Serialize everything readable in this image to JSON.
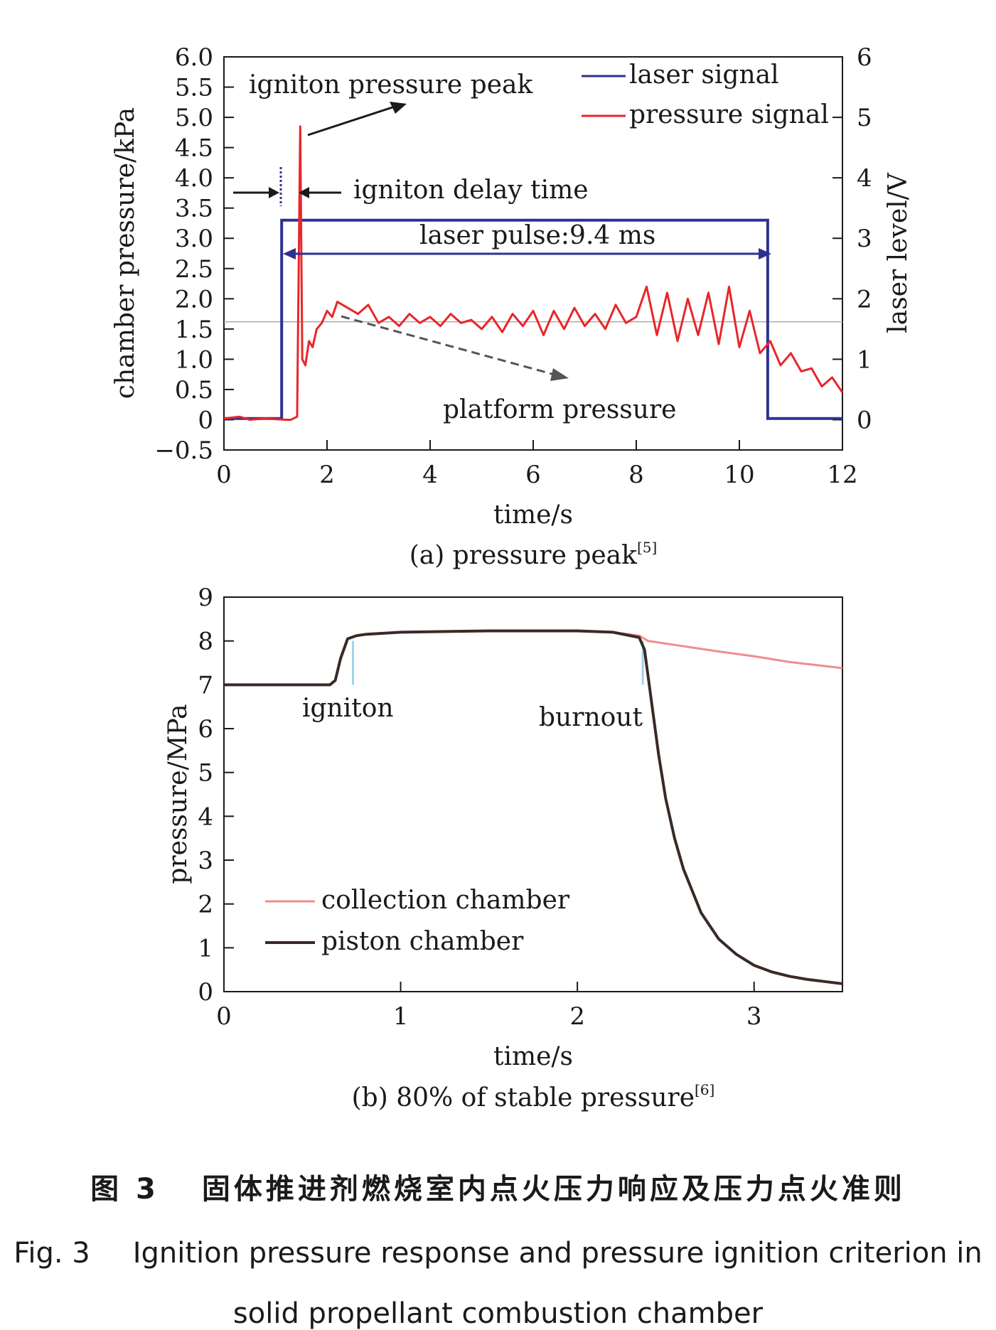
{
  "chart_data": [
    {
      "type": "line",
      "xlabel": "time/s",
      "ylabel": "chamber pressure/kPa",
      "ylabel_right": "laser level/V",
      "xlim": [
        0,
        12
      ],
      "ylim": [
        -0.5,
        6.0
      ],
      "ylim_right": [
        -0.5,
        6.0
      ],
      "x_ticks": [
        "0",
        "2",
        "4",
        "6",
        "8",
        "10",
        "12"
      ],
      "y_ticks": [
        "6.0",
        "5.5",
        "5.0",
        "4.5",
        "4.0",
        "3.5",
        "3.0",
        "2.5",
        "2.0",
        "1.5",
        "1.0",
        "0.5",
        "0",
        "−0.5"
      ],
      "y_ticks_right": [
        "6",
        "5",
        "4",
        "3",
        "2",
        "1",
        "0"
      ],
      "legend_position": "top-right",
      "grid": false,
      "series": [
        {
          "name": "laser signal",
          "color": "#2e3192",
          "x": [
            0,
            1.12,
            1.12,
            10.55,
            10.55,
            12
          ],
          "y": [
            0.02,
            0.02,
            3.3,
            3.3,
            0.02,
            0.02
          ]
        },
        {
          "name": "pressure signal",
          "color": "#e8262a",
          "x": [
            0,
            0.3,
            0.5,
            0.8,
            1.2,
            1.3,
            1.42,
            1.48,
            1.52,
            1.58,
            1.65,
            1.72,
            1.8,
            1.9,
            2.0,
            2.1,
            2.2,
            2.4,
            2.6,
            2.8,
            3.0,
            3.2,
            3.4,
            3.6,
            3.8,
            4.0,
            4.2,
            4.4,
            4.6,
            4.8,
            5.0,
            5.2,
            5.4,
            5.6,
            5.8,
            6.0,
            6.2,
            6.4,
            6.6,
            6.8,
            7.0,
            7.2,
            7.4,
            7.6,
            7.8,
            8.0,
            8.2,
            8.4,
            8.6,
            8.8,
            9.0,
            9.2,
            9.4,
            9.6,
            9.8,
            10.0,
            10.2,
            10.4,
            10.6,
            10.8,
            11.0,
            11.2,
            11.4,
            11.6,
            11.8,
            12.0
          ],
          "y": [
            0.02,
            0.05,
            0.0,
            0.02,
            0.0,
            0.0,
            0.05,
            4.85,
            1.0,
            0.9,
            1.3,
            1.2,
            1.5,
            1.6,
            1.8,
            1.7,
            1.95,
            1.85,
            1.75,
            1.9,
            1.6,
            1.7,
            1.55,
            1.75,
            1.6,
            1.7,
            1.55,
            1.75,
            1.6,
            1.65,
            1.5,
            1.7,
            1.45,
            1.75,
            1.55,
            1.8,
            1.4,
            1.8,
            1.5,
            1.85,
            1.55,
            1.75,
            1.5,
            1.9,
            1.6,
            1.7,
            2.2,
            1.4,
            2.1,
            1.3,
            2.0,
            1.4,
            2.1,
            1.25,
            2.2,
            1.2,
            1.8,
            1.1,
            1.3,
            0.9,
            1.1,
            0.8,
            0.85,
            0.55,
            0.7,
            0.45
          ]
        }
      ],
      "reference_line": {
        "y": 1.62,
        "color": "#b0a8a0"
      },
      "annotations": [
        "igniton pressure peak",
        "igniton delay time",
        "laser pulse:9.4 ms",
        "platform pressure"
      ],
      "caption": "(a) pressure peak",
      "caption_ref": "[5]"
    },
    {
      "type": "line",
      "xlabel": "time/s",
      "ylabel": "pressure/MPa",
      "xlim": [
        0,
        3.5
      ],
      "ylim": [
        0,
        9
      ],
      "x_ticks": [
        "0",
        "1",
        "2",
        "3"
      ],
      "y_ticks": [
        "9",
        "8",
        "7",
        "6",
        "5",
        "4",
        "3",
        "2",
        "1",
        "0"
      ],
      "legend_position": "bottom-left",
      "grid": false,
      "series": [
        {
          "name": "collection chamber",
          "color": "#f08c8c",
          "x": [
            0,
            0.6,
            0.63,
            0.66,
            0.7,
            0.75,
            0.8,
            1.0,
            1.5,
            2.0,
            2.2,
            2.35,
            2.4,
            2.6,
            2.8,
            3.0,
            3.2,
            3.5
          ],
          "y": [
            7.0,
            7.0,
            7.1,
            7.6,
            8.05,
            8.12,
            8.15,
            8.2,
            8.23,
            8.23,
            8.2,
            8.12,
            8.0,
            7.88,
            7.76,
            7.65,
            7.52,
            7.38
          ]
        },
        {
          "name": "piston chamber",
          "color": "#3a2a26",
          "x": [
            0,
            0.6,
            0.63,
            0.66,
            0.7,
            0.75,
            0.8,
            1.0,
            1.5,
            2.0,
            2.2,
            2.35,
            2.38,
            2.42,
            2.46,
            2.5,
            2.55,
            2.6,
            2.7,
            2.8,
            2.9,
            3.0,
            3.1,
            3.2,
            3.3,
            3.4,
            3.5
          ],
          "y": [
            7.0,
            7.0,
            7.1,
            7.6,
            8.05,
            8.12,
            8.15,
            8.2,
            8.23,
            8.23,
            8.2,
            8.08,
            7.8,
            6.6,
            5.4,
            4.4,
            3.5,
            2.8,
            1.8,
            1.2,
            0.85,
            0.6,
            0.45,
            0.35,
            0.28,
            0.23,
            0.18
          ]
        }
      ],
      "markers": [
        {
          "x": 0.73,
          "label": "igniton"
        },
        {
          "x": 2.37,
          "label": "burnout"
        }
      ],
      "marker_color": "#9fd3ea",
      "caption": "(b) 80% of stable pressure",
      "caption_ref": "[6]"
    }
  ],
  "figure_caption": {
    "zh_label": "图 3",
    "zh_text": "固体推进剂燃烧室内点火压力响应及压力点火准则",
    "en_label": "Fig. 3",
    "en_line1": "Ignition pressure response and pressure ignition criterion in",
    "en_line2": "solid propellant combustion chamber"
  }
}
